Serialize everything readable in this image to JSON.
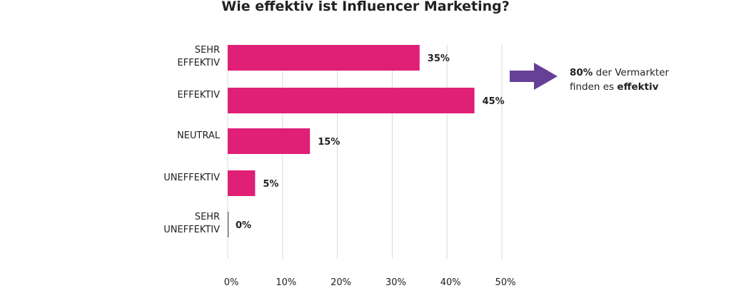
{
  "chart_data": {
    "type": "bar",
    "orientation": "horizontal",
    "title": "Wie effektiv ist Influencer Marketing?",
    "categories": [
      [
        "SEHR",
        "EFFEKTIV"
      ],
      [
        "EFFEKTIV"
      ],
      [
        "NEUTRAL"
      ],
      [
        "UNEFFEKTIV"
      ],
      [
        "SEHR",
        "UNEFFEKTIV"
      ]
    ],
    "values": [
      35,
      45,
      15,
      5,
      0
    ],
    "data_labels": [
      "35%",
      "45%",
      "15%",
      "5%",
      "0%"
    ],
    "xlim": [
      0,
      50
    ],
    "x_ticks": [
      "0%",
      "10%",
      "20%",
      "30%",
      "40%",
      "50%"
    ],
    "grid": "vertical",
    "xlabel": "",
    "ylabel": "",
    "bar_color": "#e01f77",
    "annotation": {
      "icon": "arrow-right-icon",
      "arrow_color": "#663f96",
      "bold_lead": "80%",
      "line1_rest": " der Vermarkter",
      "line2_lead": "finden es ",
      "bold_tail": "effektiv"
    }
  }
}
